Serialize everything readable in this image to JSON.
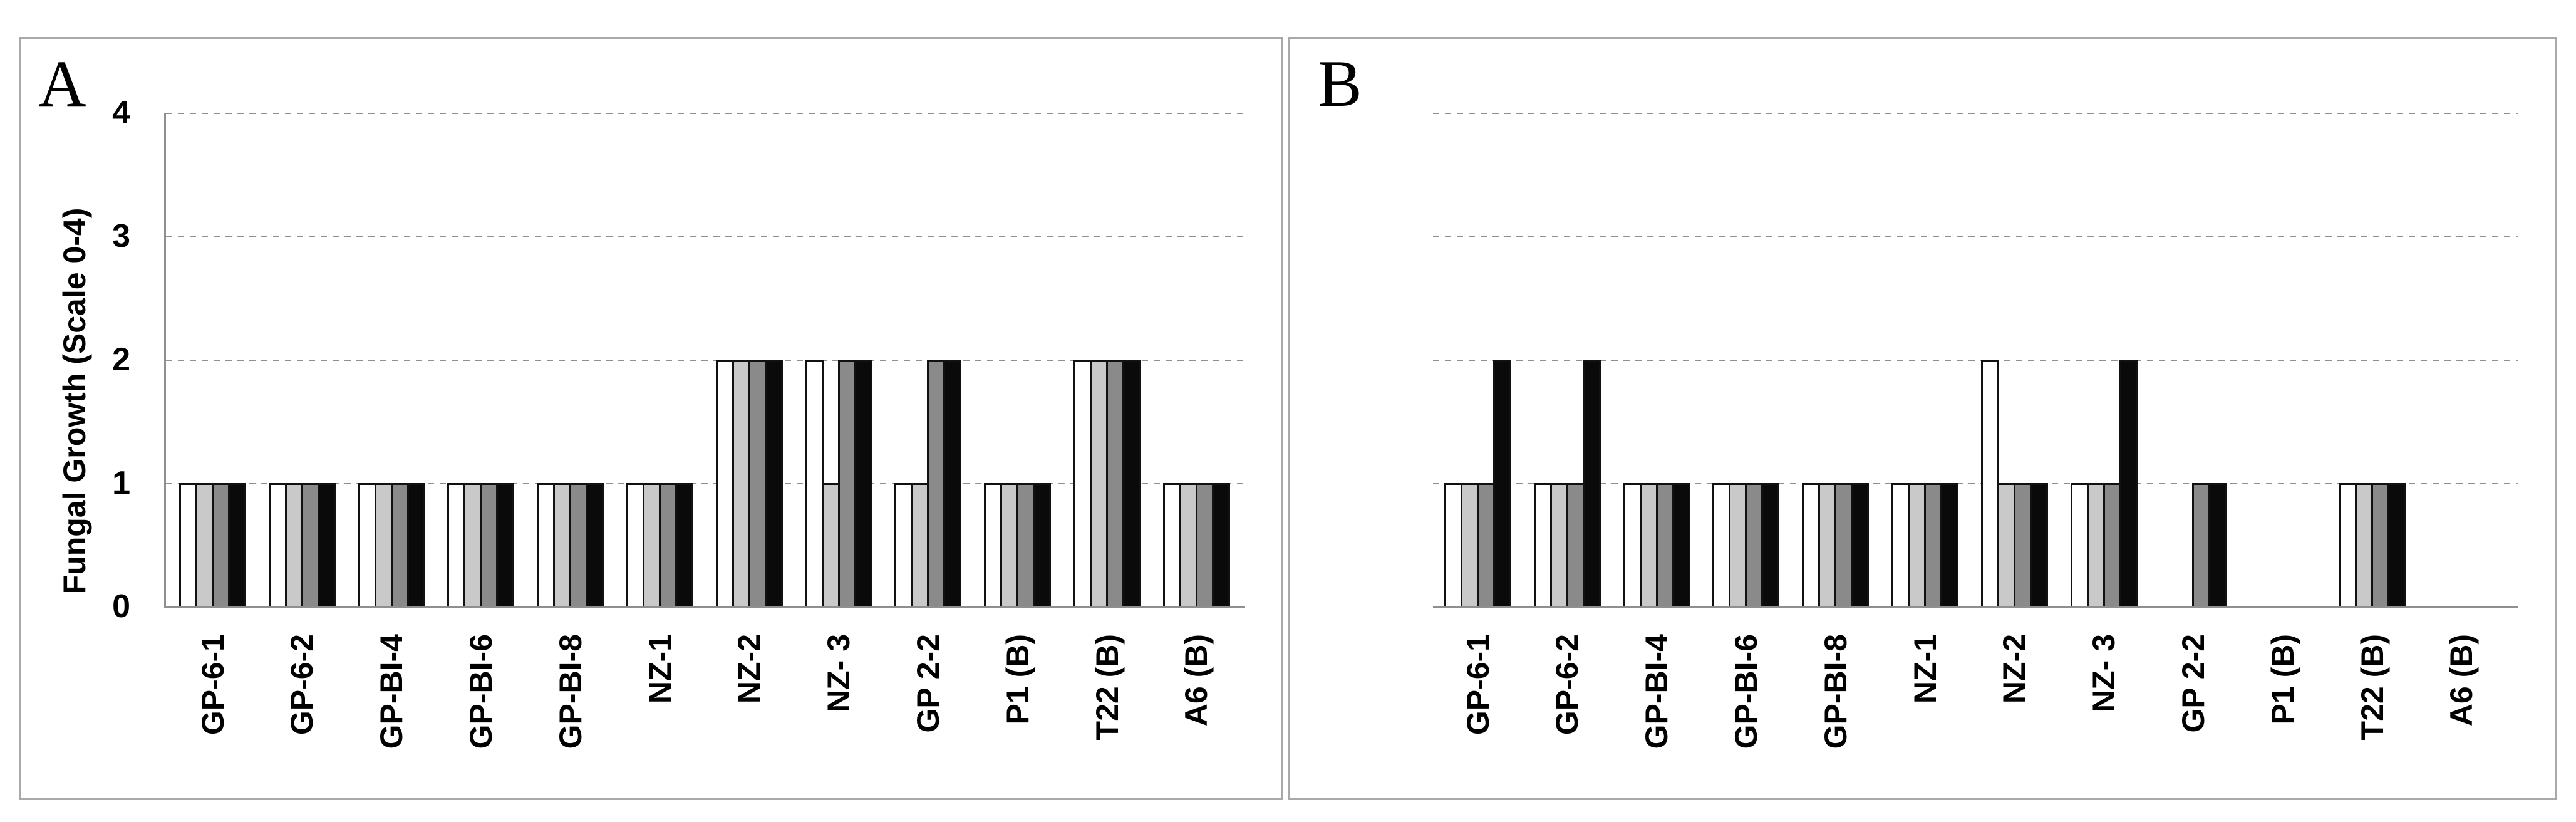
{
  "figure_title": "",
  "chart_data": [
    {
      "type": "bar",
      "panel_label": "A",
      "ylabel": "Fungal Growth (Scale 0-4)",
      "xlabel": "",
      "ylim": [
        0,
        4
      ],
      "yticks": [
        0,
        1,
        2,
        3,
        4
      ],
      "y_axis_visible": true,
      "grid": "horizontal-dashed",
      "legend": "none",
      "bar_outline_color": "#111111",
      "categories": [
        "GP-6-1",
        "GP-6-2",
        "GP-BI-4",
        "GP-BI-6",
        "GP-BI-8",
        "NZ-1",
        "NZ-2",
        "NZ- 3",
        "GP 2-2",
        "P1 (B)",
        "T22 (B)",
        "A6 (B)"
      ],
      "series": [
        {
          "name": "white",
          "color": "#ffffff",
          "values": [
            1,
            1,
            1,
            1,
            1,
            1,
            2,
            2,
            1,
            1,
            2,
            1
          ]
        },
        {
          "name": "light-gray",
          "color": "#c9c9c9",
          "values": [
            1,
            1,
            1,
            1,
            1,
            1,
            2,
            1,
            1,
            1,
            2,
            1
          ]
        },
        {
          "name": "dark-gray",
          "color": "#8a8a8a",
          "values": [
            1,
            1,
            1,
            1,
            1,
            1,
            2,
            2,
            2,
            1,
            2,
            1
          ]
        },
        {
          "name": "black",
          "color": "#0a0a0a",
          "values": [
            1,
            1,
            1,
            1,
            1,
            1,
            2,
            2,
            2,
            1,
            2,
            1
          ]
        }
      ]
    },
    {
      "type": "bar",
      "panel_label": "B",
      "ylabel": "",
      "xlabel": "",
      "ylim": [
        0,
        4
      ],
      "yticks": [
        1,
        2,
        3,
        4
      ],
      "y_axis_visible": false,
      "grid": "horizontal-dashed",
      "legend": "none",
      "bar_outline_color": "#111111",
      "categories": [
        "GP-6-1",
        "GP-6-2",
        "GP-BI-4",
        "GP-BI-6",
        "GP-BI-8",
        "NZ-1",
        "NZ-2",
        "NZ- 3",
        "GP 2-2",
        "P1 (B)",
        "T22 (B)",
        "A6 (B)"
      ],
      "series": [
        {
          "name": "white",
          "color": "#ffffff",
          "values": [
            1,
            1,
            1,
            1,
            1,
            1,
            2,
            1,
            0,
            0,
            1,
            0
          ]
        },
        {
          "name": "light-gray",
          "color": "#c9c9c9",
          "values": [
            1,
            1,
            1,
            1,
            1,
            1,
            1,
            1,
            0,
            0,
            1,
            0
          ]
        },
        {
          "name": "dark-gray",
          "color": "#8a8a8a",
          "values": [
            1,
            1,
            1,
            1,
            1,
            1,
            1,
            1,
            1,
            0,
            1,
            0
          ]
        },
        {
          "name": "black",
          "color": "#0a0a0a",
          "values": [
            2,
            2,
            1,
            1,
            1,
            1,
            1,
            2,
            1,
            0,
            1,
            0
          ]
        }
      ]
    }
  ]
}
